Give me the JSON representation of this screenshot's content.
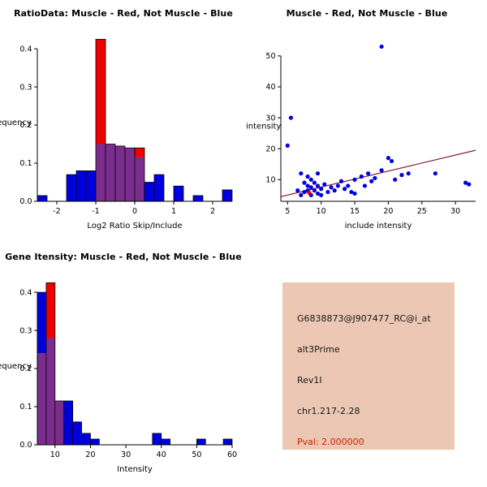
{
  "page": {
    "background": "#FFFFFF"
  },
  "chart_data": [
    {
      "type": "bar",
      "subtype": "overlaid_histogram",
      "title": "RatioData: Muscle - Red, Not Muscle - Blue",
      "xlabel": "Log2 Ratio Skip/Include",
      "ylabel": "Frequency",
      "xlim": [
        -2.5,
        2.5
      ],
      "ylim": [
        0,
        0.43
      ],
      "xticks": [
        -2,
        -1,
        0,
        1,
        2
      ],
      "xtick_labels": [
        "-2",
        "-1",
        "0",
        "1",
        "2"
      ],
      "yticks": [
        0,
        0.1,
        0.2,
        0.3,
        0.4
      ],
      "ytick_labels": [
        "0.0",
        "0.1",
        "0.2",
        "0.3",
        "0.4"
      ],
      "bin_start": -2.5,
      "bin_width": 0.25,
      "overlap_color": "#7B2D8E",
      "grid": false,
      "legend": "none",
      "series": [
        {
          "name": "Not Muscle",
          "color": "#0000DD",
          "values": [
            0.015,
            0,
            0,
            0.07,
            0.08,
            0.08,
            0.15,
            0.15,
            0.145,
            0.14,
            0.115,
            0.05,
            0.07,
            0,
            0.04,
            0,
            0.015,
            0,
            0,
            0.03
          ]
        },
        {
          "name": "Muscle",
          "color": "#EE0000",
          "values": [
            0,
            0,
            0,
            0,
            0,
            0,
            0.425,
            0.15,
            0.145,
            0.14,
            0.14,
            0,
            0,
            0,
            0,
            0,
            0,
            0,
            0,
            0
          ]
        }
      ]
    },
    {
      "type": "scatter",
      "title": "Muscle - Red, Not Muscle - Blue",
      "xlabel": "include intensity",
      "ylabel": "skip intensity",
      "xlim": [
        4,
        33
      ],
      "ylim": [
        3,
        56
      ],
      "xticks": [
        5,
        10,
        15,
        20,
        25,
        30
      ],
      "xtick_labels": [
        "5",
        "10",
        "15",
        "20",
        "25",
        "30"
      ],
      "yticks": [
        10,
        20,
        30,
        40,
        50
      ],
      "ytick_labels": [
        "10",
        "20",
        "30",
        "40",
        "50"
      ],
      "grid": false,
      "legend": "none",
      "fit_line": {
        "color": "#7A1F3F",
        "x": [
          4,
          33
        ],
        "y": [
          4.5,
          19.5
        ]
      },
      "series": [
        {
          "name": "Not Muscle",
          "color": "#0000DD",
          "points": [
            [
              5,
              21
            ],
            [
              5.5,
              30
            ],
            [
              6.5,
              6.5
            ],
            [
              7,
              5
            ],
            [
              7,
              12
            ],
            [
              7.5,
              9
            ],
            [
              7.5,
              6
            ],
            [
              8,
              11
            ],
            [
              8,
              8
            ],
            [
              8,
              6.5
            ],
            [
              8.5,
              10
            ],
            [
              8.5,
              7.5
            ],
            [
              8.5,
              5
            ],
            [
              9,
              9
            ],
            [
              9,
              6.5
            ],
            [
              9.5,
              12
            ],
            [
              9.5,
              8
            ],
            [
              9.5,
              5.5
            ],
            [
              10,
              7
            ],
            [
              10,
              5
            ],
            [
              10.5,
              8.5
            ],
            [
              11,
              6
            ],
            [
              11.5,
              7.5
            ],
            [
              12,
              6.5
            ],
            [
              12.5,
              8
            ],
            [
              13,
              9.5
            ],
            [
              13.5,
              7
            ],
            [
              14,
              8
            ],
            [
              14.5,
              6
            ],
            [
              15,
              10
            ],
            [
              15,
              5.5
            ],
            [
              16,
              11
            ],
            [
              16.5,
              8
            ],
            [
              17,
              12
            ],
            [
              17.5,
              9.5
            ],
            [
              18,
              10.5
            ],
            [
              19,
              53
            ],
            [
              19,
              13
            ],
            [
              20,
              17
            ],
            [
              20.5,
              16
            ],
            [
              21,
              10
            ],
            [
              22,
              11.5
            ],
            [
              23,
              12
            ],
            [
              27,
              12
            ],
            [
              31.5,
              9
            ],
            [
              32,
              8.5
            ]
          ]
        },
        {
          "name": "Muscle",
          "color": "#EE0000",
          "points": [
            [
              8.2,
              5.8
            ]
          ]
        }
      ]
    },
    {
      "type": "bar",
      "subtype": "overlaid_histogram",
      "title": "Gene Itensity: Muscle - Red, Not Muscle - Blue",
      "xlabel": "Intensity",
      "ylabel": "Frequency",
      "xlim": [
        5,
        60
      ],
      "ylim": [
        0,
        0.43
      ],
      "xticks": [
        10,
        20,
        30,
        40,
        50,
        60
      ],
      "xtick_labels": [
        "10",
        "20",
        "30",
        "40",
        "50",
        "60"
      ],
      "yticks": [
        0,
        0.1,
        0.2,
        0.3,
        0.4
      ],
      "ytick_labels": [
        "0.0",
        "0.1",
        "0.2",
        "0.3",
        "0.4"
      ],
      "bin_start": 5,
      "bin_width": 2.5,
      "overlap_color": "#7B2D8E",
      "grid": false,
      "legend": "none",
      "series": [
        {
          "name": "Not Muscle",
          "color": "#0000DD",
          "values": [
            0.4,
            0.28,
            0.115,
            0.115,
            0.06,
            0.03,
            0.015,
            0,
            0,
            0,
            0,
            0,
            0,
            0.03,
            0.015,
            0,
            0,
            0,
            0.015,
            0,
            0,
            0.015
          ]
        },
        {
          "name": "Muscle",
          "color": "#EE0000",
          "values": [
            0.24,
            0.425,
            0.115,
            0,
            0,
            0,
            0,
            0,
            0,
            0,
            0,
            0,
            0,
            0,
            0,
            0,
            0,
            0,
            0,
            0,
            0,
            0
          ]
        }
      ]
    }
  ],
  "info_box": {
    "background": "#EBC7B4",
    "lines": [
      {
        "text": "G6838873@J907477_RC@i_at",
        "color": "#1A1A1A"
      },
      {
        "text": "alt3Prime",
        "color": "#1A1A1A"
      },
      {
        "text": "Rev1I",
        "color": "#1A1A1A"
      },
      {
        "text": "chr1.217-2.28",
        "color": "#1A1A1A"
      },
      {
        "text": "Pval: 2.000000",
        "color": "#CC2200"
      }
    ]
  }
}
